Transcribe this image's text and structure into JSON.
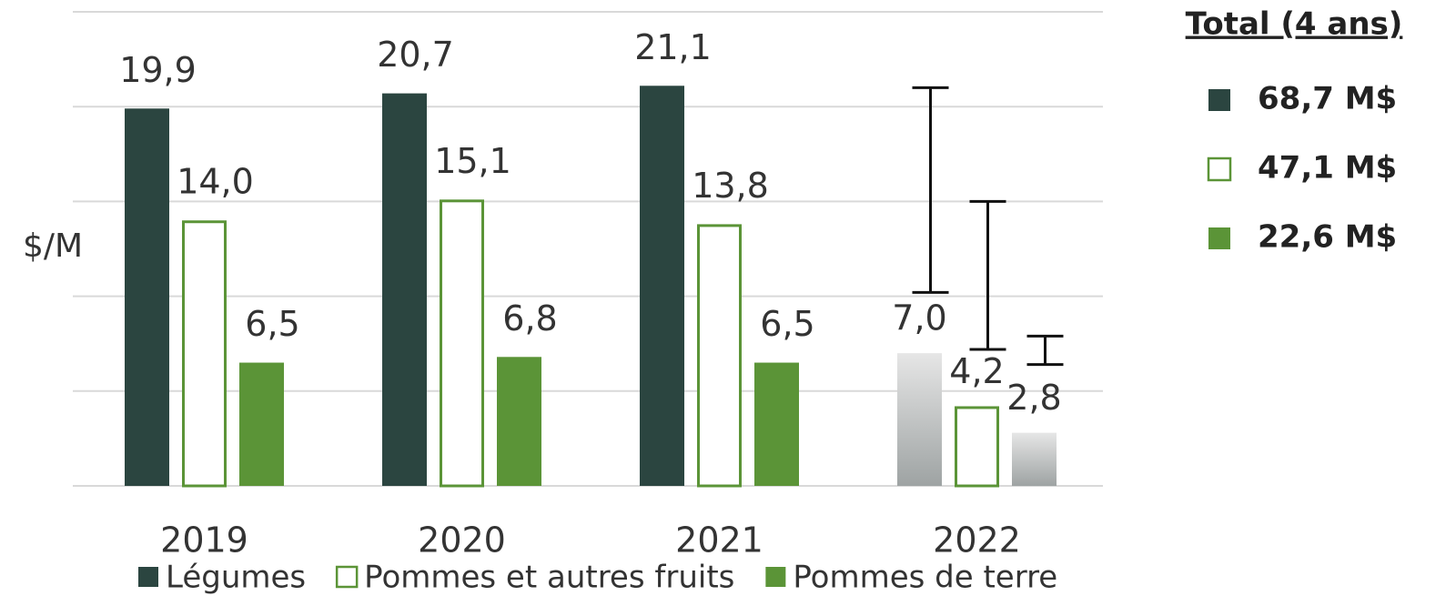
{
  "chart_data": {
    "type": "bar",
    "y_label": "$/M",
    "categories": [
      "2019",
      "2020",
      "2021",
      "2022"
    ],
    "projected": [
      false,
      false,
      false,
      true
    ],
    "ylim": [
      0,
      25
    ],
    "yticks": [
      0,
      5,
      10,
      15,
      20,
      25
    ],
    "grid": true,
    "series": [
      {
        "name": "Légumes",
        "color": "#2b4540",
        "fill": true,
        "values": [
          19.9,
          20.7,
          21.1,
          7.0
        ],
        "value_labels": [
          "19,9",
          "20,7",
          "21,1",
          "7,0"
        ],
        "range": [
          null,
          null,
          null,
          [
            10.2,
            21.0
          ]
        ],
        "total_label": "68,7 M$"
      },
      {
        "name": "Pommes et autres fruits",
        "color": "#5b9437",
        "fill": false,
        "values": [
          14.0,
          15.1,
          13.8,
          4.2
        ],
        "value_labels": [
          "14,0",
          "15,1",
          "13,8",
          "4,2"
        ],
        "range": [
          null,
          null,
          null,
          [
            7.2,
            15.0
          ]
        ],
        "total_label": "47,1 M$"
      },
      {
        "name": "Pommes de terre",
        "color": "#5b9437",
        "fill": true,
        "values": [
          6.5,
          6.8,
          6.5,
          2.8
        ],
        "value_labels": [
          "6,5",
          "6,8",
          "6,5",
          "2,8"
        ],
        "range": [
          null,
          null,
          null,
          [
            6.4,
            7.9
          ]
        ],
        "total_label": "22,6 M$"
      }
    ],
    "totals_title": "Total (4 ans)"
  }
}
